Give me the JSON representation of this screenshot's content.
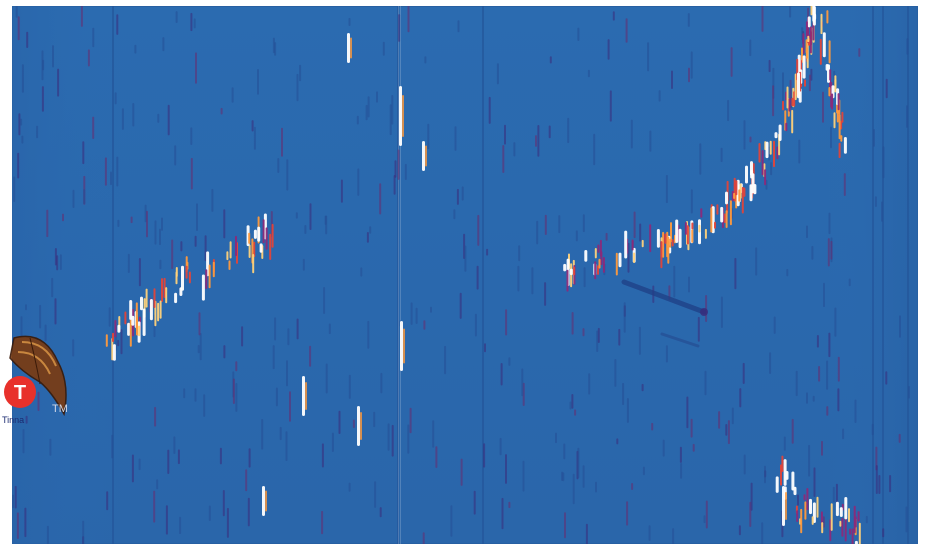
{
  "image": {
    "background_color": "#2b6bb0",
    "frame_color": "#ffffff",
    "streak_palette": [
      "#ffffff",
      "#ffd27a",
      "#ff9a3c",
      "#e0443a",
      "#8a2a7a",
      "#3a2a8a",
      "#1f3f86"
    ]
  },
  "logo": {
    "icon": "bee-logo-icon",
    "letter": "T",
    "word": "Tinna",
    "mark": "TM",
    "accent_color": "#e8312b"
  }
}
